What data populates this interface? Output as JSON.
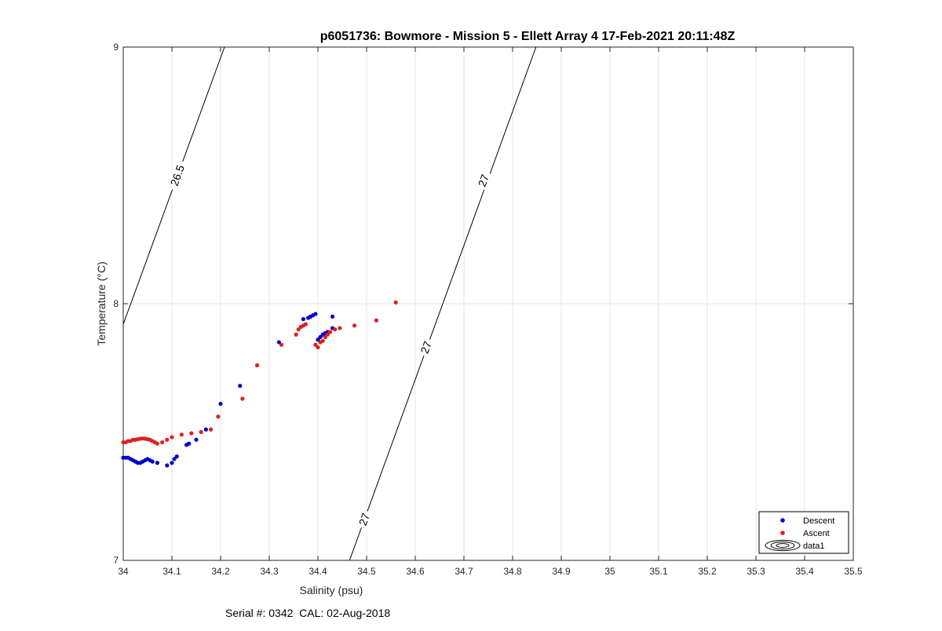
{
  "chart_data": {
    "type": "scatter",
    "title": "p6051736: Bowmore - Mission 5 - Ellett Array 4 17-Feb-2021 20:11:48Z",
    "xlabel": "Salinity (psu)",
    "ylabel": "Temperature (°C)",
    "xlim": [
      34,
      35.5
    ],
    "ylim": [
      7,
      9
    ],
    "x_ticks": [
      "34",
      "34.1",
      "34.2",
      "34.3",
      "34.4",
      "34.5",
      "34.6",
      "34.7",
      "34.8",
      "34.9",
      "35",
      "35.1",
      "35.2",
      "35.3",
      "35.4",
      "35.5"
    ],
    "y_ticks": [
      "7",
      "8",
      "9"
    ],
    "grid": true,
    "legend_position": "bottom-right",
    "series": [
      {
        "name": "Descent",
        "color": "#0000cc",
        "marker": "circle",
        "x": [
          34.0,
          34.005,
          34.01,
          34.015,
          34.02,
          34.025,
          34.03,
          34.035,
          34.04,
          34.045,
          34.05,
          34.055,
          34.06,
          34.07,
          34.09,
          34.1,
          34.105,
          34.11,
          34.13,
          34.135,
          34.15,
          34.17,
          34.2,
          34.24,
          34.32,
          34.37,
          34.38,
          34.385,
          34.39,
          34.395,
          34.4,
          34.405,
          34.41,
          34.415,
          34.42,
          34.43,
          34.43
        ],
        "y": [
          7.4,
          7.4,
          7.4,
          7.395,
          7.39,
          7.385,
          7.38,
          7.38,
          7.385,
          7.39,
          7.395,
          7.39,
          7.385,
          7.38,
          7.37,
          7.38,
          7.395,
          7.405,
          7.45,
          7.455,
          7.47,
          7.51,
          7.61,
          7.68,
          7.85,
          7.94,
          7.945,
          7.95,
          7.955,
          7.96,
          7.86,
          7.87,
          7.88,
          7.885,
          7.89,
          7.905,
          7.95
        ]
      },
      {
        "name": "Ascent",
        "color": "#e02020",
        "marker": "circle",
        "x": [
          34.0,
          34.005,
          34.01,
          34.015,
          34.02,
          34.025,
          34.03,
          34.035,
          34.04,
          34.045,
          34.05,
          34.055,
          34.06,
          34.065,
          34.07,
          34.08,
          34.09,
          34.1,
          34.12,
          34.14,
          34.16,
          34.18,
          34.195,
          34.245,
          34.275,
          34.325,
          34.355,
          34.36,
          34.365,
          34.37,
          34.375,
          34.395,
          34.4,
          34.405,
          34.41,
          34.415,
          34.42,
          34.425,
          34.435,
          34.445,
          34.475,
          34.52,
          34.56
        ],
        "y": [
          7.46,
          7.46,
          7.465,
          7.465,
          7.47,
          7.47,
          7.472,
          7.474,
          7.475,
          7.474,
          7.472,
          7.47,
          7.465,
          7.46,
          7.455,
          7.46,
          7.47,
          7.48,
          7.49,
          7.495,
          7.5,
          7.51,
          7.56,
          7.63,
          7.76,
          7.84,
          7.88,
          7.9,
          7.91,
          7.915,
          7.92,
          7.84,
          7.83,
          7.85,
          7.855,
          7.87,
          7.88,
          7.89,
          7.9,
          7.905,
          7.915,
          7.935,
          8.005
        ]
      },
      {
        "name": "data1",
        "type": "contour",
        "levels": [
          {
            "label": "26.5",
            "x": [
              34.0,
              34.208
            ],
            "y": [
              7.92,
              9.0
            ]
          },
          {
            "label": "27",
            "x": [
              34.465,
              34.848
            ],
            "y": [
              7.0,
              9.0
            ]
          }
        ]
      }
    ],
    "contour_labels": [
      {
        "text": "26.5",
        "x": 34.111,
        "y": 8.5
      },
      {
        "text": "27",
        "x": 34.74,
        "y": 8.48
      },
      {
        "text": "27",
        "x": 34.622,
        "y": 7.83
      },
      {
        "text": "27",
        "x": 34.495,
        "y": 7.16
      }
    ]
  },
  "footer": {
    "serial": "Serial #: 0342  CAL: 02-Aug-2018"
  }
}
